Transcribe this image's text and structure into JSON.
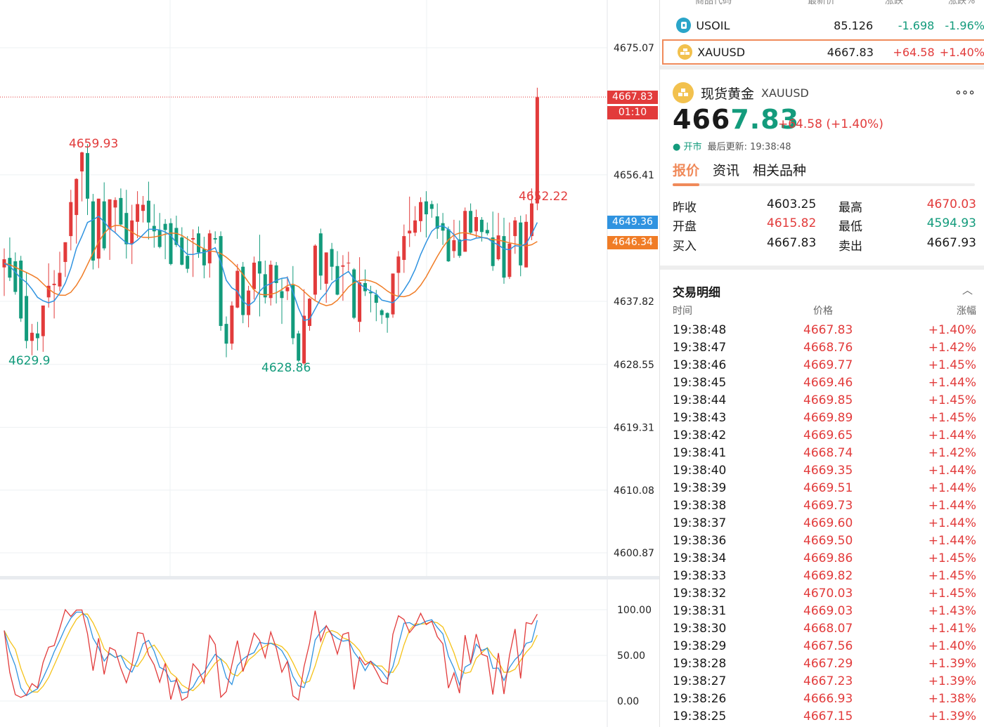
{
  "chart": {
    "y_ticks": [
      "4675.07",
      "4656.41",
      "4637.82",
      "4628.55",
      "4619.31",
      "4610.08",
      "4600.87"
    ],
    "osc_ticks": [
      "100.00",
      "50.00",
      "0.00"
    ],
    "high_annot": "4659.93",
    "low_annot_1": "4629.9",
    "low_annot_2": "4628.86",
    "high_annot_2": "4652.22",
    "last_price_tag": "4667.83",
    "countdown_tag": "01:10",
    "ma_tag_1": "4649.36",
    "ma_tag_2": "4646.34",
    "colors": {
      "up": "#e23b3b",
      "down": "#139b7c",
      "ma_fast": "#2f93e0",
      "ma_slow": "#f07c26",
      "osc_k": "#e23b3b",
      "osc_d": "#2f93e0",
      "osc_j": "#f5c218"
    }
  },
  "watchlist": {
    "header": {
      "symbol": "商品代码",
      "last": "最新价",
      "change": "涨跌",
      "pct": "涨跌%"
    },
    "rows": [
      {
        "symbol": "USOIL",
        "last": "85.126",
        "change": "-1.698",
        "pct": "-1.96%",
        "icon": "oil-icon"
      },
      {
        "symbol": "XAUUSD",
        "last": "4667.83",
        "change": "+64.58",
        "pct": "+1.40%",
        "icon": "gold-icon"
      }
    ]
  },
  "detail": {
    "name": "现货黄金",
    "code": "XAUUSD",
    "more": "∘∘∘",
    "price_int": "466",
    "price_rest": "7.83",
    "change": "+64.58 (+1.40%)",
    "status": "● 开市",
    "updated": "最后更新: 19:38:48"
  },
  "tabs": [
    "报价",
    "资讯",
    "相关品种"
  ],
  "quote": {
    "prev_close_label": "昨收",
    "prev_close": "4603.25",
    "high_label": "最高",
    "high": "4670.03",
    "open_label": "开盘",
    "open": "4615.82",
    "low_label": "最低",
    "low": "4594.93",
    "bid_label": "买入",
    "bid": "4667.83",
    "ask_label": "卖出",
    "ask": "4667.93"
  },
  "trades": {
    "title": "交易明细",
    "collapse": "︿",
    "headers": {
      "time": "时间",
      "price": "价格",
      "pct": "涨幅"
    },
    "rows": [
      {
        "time": "19:38:48",
        "price": "4667.83",
        "pct": "+1.40%"
      },
      {
        "time": "19:38:47",
        "price": "4668.76",
        "pct": "+1.42%"
      },
      {
        "time": "19:38:46",
        "price": "4669.77",
        "pct": "+1.45%"
      },
      {
        "time": "19:38:45",
        "price": "4669.46",
        "pct": "+1.44%"
      },
      {
        "time": "19:38:44",
        "price": "4669.85",
        "pct": "+1.45%"
      },
      {
        "time": "19:38:43",
        "price": "4669.89",
        "pct": "+1.45%"
      },
      {
        "time": "19:38:42",
        "price": "4669.65",
        "pct": "+1.44%"
      },
      {
        "time": "19:38:41",
        "price": "4668.74",
        "pct": "+1.42%"
      },
      {
        "time": "19:38:40",
        "price": "4669.35",
        "pct": "+1.44%"
      },
      {
        "time": "19:38:39",
        "price": "4669.51",
        "pct": "+1.44%"
      },
      {
        "time": "19:38:38",
        "price": "4669.73",
        "pct": "+1.44%"
      },
      {
        "time": "19:38:37",
        "price": "4669.60",
        "pct": "+1.44%"
      },
      {
        "time": "19:38:36",
        "price": "4669.50",
        "pct": "+1.44%"
      },
      {
        "time": "19:38:34",
        "price": "4669.86",
        "pct": "+1.45%"
      },
      {
        "time": "19:38:33",
        "price": "4669.82",
        "pct": "+1.45%"
      },
      {
        "time": "19:38:32",
        "price": "4670.03",
        "pct": "+1.45%"
      },
      {
        "time": "19:38:31",
        "price": "4669.03",
        "pct": "+1.43%"
      },
      {
        "time": "19:38:30",
        "price": "4668.07",
        "pct": "+1.41%"
      },
      {
        "time": "19:38:29",
        "price": "4667.56",
        "pct": "+1.40%"
      },
      {
        "time": "19:38:28",
        "price": "4667.29",
        "pct": "+1.39%"
      },
      {
        "time": "19:38:27",
        "price": "4667.23",
        "pct": "+1.39%"
      },
      {
        "time": "19:38:26",
        "price": "4666.93",
        "pct": "+1.38%"
      },
      {
        "time": "19:38:25",
        "price": "4667.15",
        "pct": "+1.39%"
      }
    ]
  },
  "chart_data": {
    "type": "candlestick",
    "y_axis_ticks": [
      4675.07,
      4656.41,
      4637.82,
      4628.55,
      4619.31,
      4610.08,
      4600.87
    ],
    "last_price": 4667.83,
    "annotations": [
      {
        "label": "4659.93",
        "kind": "high"
      },
      {
        "label": "4629.9",
        "kind": "low"
      },
      {
        "label": "4628.86",
        "kind": "low"
      },
      {
        "label": "4652.22",
        "kind": "high"
      }
    ],
    "candles": [
      {
        "o": 4642.8,
        "h": 4645.6,
        "l": 4638.6,
        "c": 4644.0
      },
      {
        "o": 4644.2,
        "h": 4647.2,
        "l": 4640.8,
        "c": 4641.3
      },
      {
        "o": 4643.7,
        "h": 4645.0,
        "l": 4638.8,
        "c": 4639.2
      },
      {
        "o": 4643.8,
        "h": 4644.5,
        "l": 4634.8,
        "c": 4635.3
      },
      {
        "o": 4638.6,
        "h": 4642.0,
        "l": 4630.9,
        "c": 4632.0
      },
      {
        "o": 4632.0,
        "h": 4634.5,
        "l": 4629.9,
        "c": 4633.2
      },
      {
        "o": 4633.1,
        "h": 4634.8,
        "l": 4630.6,
        "c": 4632.4
      },
      {
        "o": 4632.7,
        "h": 4637.2,
        "l": 4630.4,
        "c": 4637.2
      },
      {
        "o": 4638.4,
        "h": 4643.4,
        "l": 4636.9,
        "c": 4640.1
      },
      {
        "o": 4640.2,
        "h": 4642.4,
        "l": 4635.3,
        "c": 4640.4
      },
      {
        "o": 4640.0,
        "h": 4645.1,
        "l": 4639.3,
        "c": 4642.0
      },
      {
        "o": 4643.6,
        "h": 4646.5,
        "l": 4641.4,
        "c": 4646.5
      },
      {
        "o": 4647.4,
        "h": 4654.2,
        "l": 4645.3,
        "c": 4652.4
      },
      {
        "o": 4650.5,
        "h": 4655.9,
        "l": 4646.3,
        "c": 4655.8
      },
      {
        "o": 4656.9,
        "h": 4659.8,
        "l": 4652.5,
        "c": 4659.7
      },
      {
        "o": 4659.6,
        "h": 4660.9,
        "l": 4650.5,
        "c": 4652.9
      },
      {
        "o": 4652.5,
        "h": 4653.6,
        "l": 4642.5,
        "c": 4643.8
      },
      {
        "o": 4644.1,
        "h": 4652.9,
        "l": 4642.7,
        "c": 4652.9
      },
      {
        "o": 4652.5,
        "h": 4655.3,
        "l": 4645.3,
        "c": 4645.6
      },
      {
        "o": 4648.4,
        "h": 4652.8,
        "l": 4643.9,
        "c": 4652.8
      },
      {
        "o": 4651.6,
        "h": 4653.1,
        "l": 4647.8,
        "c": 4652.7
      },
      {
        "o": 4653.0,
        "h": 4654.4,
        "l": 4648.8,
        "c": 4649.1
      },
      {
        "o": 4650.8,
        "h": 4654.2,
        "l": 4644.1,
        "c": 4646.2
      },
      {
        "o": 4646.3,
        "h": 4652.0,
        "l": 4643.3,
        "c": 4649.7
      },
      {
        "o": 4649.5,
        "h": 4654.0,
        "l": 4647.1,
        "c": 4652.1
      },
      {
        "o": 4651.1,
        "h": 4653.3,
        "l": 4649.4,
        "c": 4652.0
      },
      {
        "o": 4652.6,
        "h": 4655.4,
        "l": 4646.9,
        "c": 4649.4
      },
      {
        "o": 4648.9,
        "h": 4652.1,
        "l": 4645.7,
        "c": 4648.1
      },
      {
        "o": 4648.3,
        "h": 4650.8,
        "l": 4645.6,
        "c": 4645.8
      },
      {
        "o": 4649.2,
        "h": 4649.9,
        "l": 4644.0,
        "c": 4648.3
      },
      {
        "o": 4649.3,
        "h": 4650.0,
        "l": 4643.1,
        "c": 4643.3
      },
      {
        "o": 4648.6,
        "h": 4650.4,
        "l": 4645.8,
        "c": 4646.1
      },
      {
        "o": 4647.2,
        "h": 4648.7,
        "l": 4643.1,
        "c": 4643.2
      },
      {
        "o": 4644.5,
        "h": 4647.4,
        "l": 4642.0,
        "c": 4642.6
      },
      {
        "o": 4646.9,
        "h": 4648.4,
        "l": 4641.4,
        "c": 4647.1
      },
      {
        "o": 4647.8,
        "h": 4648.8,
        "l": 4644.2,
        "c": 4645.0
      },
      {
        "o": 4645.5,
        "h": 4647.3,
        "l": 4641.2,
        "c": 4643.1
      },
      {
        "o": 4643.4,
        "h": 4648.3,
        "l": 4641.3,
        "c": 4647.8
      },
      {
        "o": 4647.1,
        "h": 4648.1,
        "l": 4646.3,
        "c": 4646.9
      },
      {
        "o": 4647.4,
        "h": 4648.1,
        "l": 4633.5,
        "c": 4634.2
      },
      {
        "o": 4634.5,
        "h": 4635.6,
        "l": 4629.6,
        "c": 4631.6
      },
      {
        "o": 4631.6,
        "h": 4637.8,
        "l": 4630.7,
        "c": 4637.2
      },
      {
        "o": 4636.9,
        "h": 4643.3,
        "l": 4636.8,
        "c": 4642.3
      },
      {
        "o": 4642.9,
        "h": 4643.6,
        "l": 4634.6,
        "c": 4635.8
      },
      {
        "o": 4635.8,
        "h": 4640.1,
        "l": 4634.0,
        "c": 4639.4
      },
      {
        "o": 4639.6,
        "h": 4644.4,
        "l": 4638.1,
        "c": 4643.5
      },
      {
        "o": 4643.7,
        "h": 4647.6,
        "l": 4635.6,
        "c": 4641.9
      },
      {
        "o": 4641.8,
        "h": 4643.8,
        "l": 4637.5,
        "c": 4638.4
      },
      {
        "o": 4638.3,
        "h": 4643.8,
        "l": 4637.2,
        "c": 4643.2
      },
      {
        "o": 4643.1,
        "h": 4643.6,
        "l": 4637.5,
        "c": 4640.5
      },
      {
        "o": 4639.3,
        "h": 4641.1,
        "l": 4634.5,
        "c": 4638.3
      },
      {
        "o": 4639.3,
        "h": 4641.5,
        "l": 4638.0,
        "c": 4639.9
      },
      {
        "o": 4640.2,
        "h": 4643.0,
        "l": 4631.5,
        "c": 4632.4
      },
      {
        "o": 4633.1,
        "h": 4633.5,
        "l": 4628.9,
        "c": 4629.1
      },
      {
        "o": 4628.7,
        "h": 4639.6,
        "l": 4628.5,
        "c": 4635.7
      },
      {
        "o": 4634.2,
        "h": 4638.3,
        "l": 4633.5,
        "c": 4638.2
      },
      {
        "o": 4638.8,
        "h": 4646.2,
        "l": 4638.0,
        "c": 4646.0
      },
      {
        "o": 4647.8,
        "h": 4648.5,
        "l": 4639.5,
        "c": 4641.6
      },
      {
        "o": 4640.4,
        "h": 4645.0,
        "l": 4637.6,
        "c": 4645.0
      },
      {
        "o": 4645.5,
        "h": 4646.4,
        "l": 4640.9,
        "c": 4642.9
      },
      {
        "o": 4643.0,
        "h": 4645.2,
        "l": 4638.7,
        "c": 4638.8
      },
      {
        "o": 4642.9,
        "h": 4644.6,
        "l": 4637.9,
        "c": 4643.1
      },
      {
        "o": 4643.5,
        "h": 4645.1,
        "l": 4642.3,
        "c": 4643.5
      },
      {
        "o": 4642.5,
        "h": 4642.7,
        "l": 4635.2,
        "c": 4635.4
      },
      {
        "o": 4634.8,
        "h": 4644.3,
        "l": 4633.3,
        "c": 4640.6
      },
      {
        "o": 4640.5,
        "h": 4642.5,
        "l": 4638.6,
        "c": 4639.3
      },
      {
        "o": 4639.2,
        "h": 4640.1,
        "l": 4636.2,
        "c": 4639.0
      },
      {
        "o": 4638.8,
        "h": 4639.5,
        "l": 4634.9,
        "c": 4637.6
      },
      {
        "o": 4636.5,
        "h": 4636.7,
        "l": 4634.5,
        "c": 4635.8
      },
      {
        "o": 4636.1,
        "h": 4636.2,
        "l": 4633.2,
        "c": 4635.4
      },
      {
        "o": 4635.9,
        "h": 4641.9,
        "l": 4635.4,
        "c": 4641.9
      },
      {
        "o": 4642.0,
        "h": 4645.2,
        "l": 4638.5,
        "c": 4644.4
      },
      {
        "o": 4643.9,
        "h": 4649.1,
        "l": 4642.0,
        "c": 4647.4
      },
      {
        "o": 4647.8,
        "h": 4653.2,
        "l": 4645.8,
        "c": 4648.2
      },
      {
        "o": 4647.9,
        "h": 4651.8,
        "l": 4647.4,
        "c": 4649.7
      },
      {
        "o": 4649.6,
        "h": 4653.1,
        "l": 4648.0,
        "c": 4652.4
      },
      {
        "o": 4652.5,
        "h": 4654.0,
        "l": 4647.2,
        "c": 4650.6
      },
      {
        "o": 4652.1,
        "h": 4652.6,
        "l": 4650.1,
        "c": 4651.4
      },
      {
        "o": 4650.3,
        "h": 4652.2,
        "l": 4647.0,
        "c": 4648.5
      },
      {
        "o": 4649.3,
        "h": 4650.8,
        "l": 4646.1,
        "c": 4648.2
      },
      {
        "o": 4648.4,
        "h": 4648.8,
        "l": 4643.6,
        "c": 4643.7
      },
      {
        "o": 4645.2,
        "h": 4649.8,
        "l": 4644.2,
        "c": 4646.8
      },
      {
        "o": 4646.9,
        "h": 4649.7,
        "l": 4644.2,
        "c": 4644.5
      },
      {
        "o": 4645.1,
        "h": 4651.6,
        "l": 4645.1,
        "c": 4651.1
      },
      {
        "o": 4651.1,
        "h": 4652.2,
        "l": 4647.6,
        "c": 4647.9
      },
      {
        "o": 4648.1,
        "h": 4651.3,
        "l": 4647.2,
        "c": 4650.2
      },
      {
        "o": 4649.8,
        "h": 4650.2,
        "l": 4646.6,
        "c": 4648.0
      },
      {
        "o": 4648.3,
        "h": 4649.4,
        "l": 4647.5,
        "c": 4647.8
      },
      {
        "o": 4647.2,
        "h": 4651.0,
        "l": 4642.3,
        "c": 4643.0
      },
      {
        "o": 4644.0,
        "h": 4650.8,
        "l": 4643.8,
        "c": 4647.5
      },
      {
        "o": 4647.4,
        "h": 4650.1,
        "l": 4640.4,
        "c": 4641.3
      },
      {
        "o": 4641.4,
        "h": 4649.4,
        "l": 4641.1,
        "c": 4646.3
      },
      {
        "o": 4647.4,
        "h": 4650.2,
        "l": 4644.8,
        "c": 4649.7
      },
      {
        "o": 4649.4,
        "h": 4650.4,
        "l": 4641.5,
        "c": 4643.1
      },
      {
        "o": 4642.8,
        "h": 4650.6,
        "l": 4642.8,
        "c": 4649.5
      },
      {
        "o": 4647.4,
        "h": 4654.4,
        "l": 4646.8,
        "c": 4652.2
      },
      {
        "o": 4652.2,
        "h": 4669.2,
        "l": 4651.2,
        "c": 4667.8
      }
    ],
    "ma_fast": [
      4643.4,
      4643.0,
      4642.1,
      4641.2,
      4640.6,
      4639.6,
      4638.4,
      4637.9,
      4637.6,
      4637.9,
      4639.0,
      4640.5,
      4642.7,
      4645.6,
      4647.4,
      4649.4,
      4649.8,
      4650.3,
      4649.5,
      4648.5,
      4647.9,
      4647.1,
      4646.4,
      4646.2,
      4646.8,
      4647.6,
      4648.4,
      4648.4,
      4648.3,
      4648.0,
      4647.5,
      4646.4,
      4645.5,
      4644.7,
      4644.7,
      4644.9,
      4645.0,
      4645.3,
      4645.7,
      4643.6,
      4640.9,
      4639.8,
      4639.3,
      4637.8,
      4637.2,
      4637.8,
      4639.3,
      4640.1,
      4640.4,
      4640.9,
      4641.2,
      4641.3,
      4639.2,
      4636.8,
      4635.0,
      4635.2,
      4636.7,
      4638.2,
      4639.1,
      4640.5,
      4641.1,
      4641.7,
      4642.2,
      4641.1,
      4640.4,
      4639.8,
      4639.3,
      4638.9,
      4638.0,
      4637.8,
      4637.6,
      4638.4,
      4639.5,
      4640.8,
      4642.5,
      4644.7,
      4646.5,
      4648.1,
      4648.8,
      4648.9,
      4648.4,
      4647.6,
      4646.6,
      4646.9,
      4646.8,
      4647.1,
      4647.2,
      4647.1,
      4646.5,
      4646.1,
      4645.5,
      4645.4,
      4646.0,
      4645.9,
      4646.3,
      4647.7,
      4649.4
    ]
  }
}
